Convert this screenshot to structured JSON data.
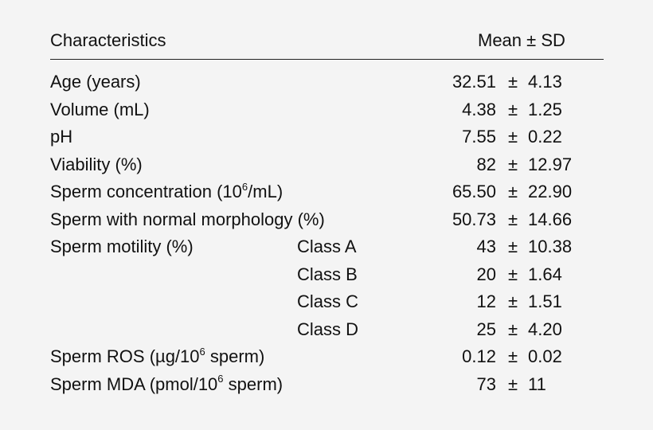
{
  "header": {
    "characteristics": "Characteristics",
    "mean_sd": "Mean ± SD"
  },
  "rows": [
    {
      "label": "Age (years)",
      "sub": "",
      "mean": "32.51",
      "pm": "±",
      "sd": "4.13"
    },
    {
      "label": "Volume (mL)",
      "sub": "",
      "mean": "4.38",
      "pm": "±",
      "sd": "1.25"
    },
    {
      "label": "pH",
      "sub": "",
      "mean": "7.55",
      "pm": "±",
      "sd": "0.22"
    },
    {
      "label": "Viability (%)",
      "sub": "",
      "mean": "82",
      "pm": "±",
      "sd": "12.97"
    },
    {
      "label_pre": "Sperm concentration (10",
      "label_sup": "6",
      "label_post": "/mL)",
      "sub": "",
      "mean": "65.50",
      "pm": "±",
      "sd": "22.90"
    },
    {
      "label": "Sperm with normal morphology (%)",
      "sub": "",
      "mean": "50.73",
      "pm": "±",
      "sd": "14.66"
    },
    {
      "label": "Sperm motility (%)",
      "sub": "Class A",
      "mean": "43",
      "pm": "±",
      "sd": "10.38"
    },
    {
      "label": "",
      "sub": "Class B",
      "mean": "20",
      "pm": "±",
      "sd": "1.64"
    },
    {
      "label": "",
      "sub": "Class C",
      "mean": "12",
      "pm": "±",
      "sd": "1.51"
    },
    {
      "label": "",
      "sub": "Class D",
      "mean": "25",
      "pm": "±",
      "sd": "4.20"
    },
    {
      "label_pre": "Sperm ROS (µg/10",
      "label_sup": "6",
      "label_post": " sperm)",
      "sub": "",
      "mean": "0.12",
      "pm": "±",
      "sd": "0.02"
    },
    {
      "label_pre": "Sperm MDA (pmol/10",
      "label_sup": "6",
      "label_post": " sperm)",
      "sub": "",
      "mean": "73",
      "pm": "±",
      "sd": "11"
    }
  ]
}
